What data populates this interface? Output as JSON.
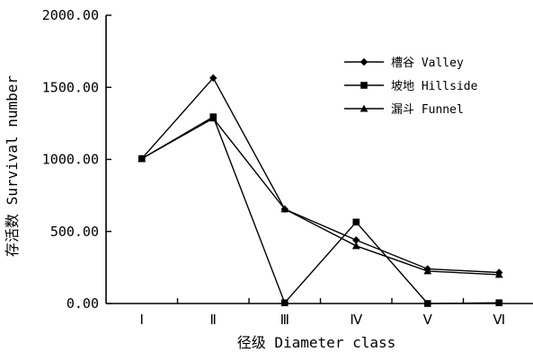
{
  "chart_data": {
    "type": "line",
    "categories": [
      "Ⅰ",
      "Ⅱ",
      "Ⅲ",
      "Ⅳ",
      "Ⅴ",
      "Ⅵ"
    ],
    "xlabel": "径级  Diameter class",
    "ylabel": "存活数 Survival number",
    "ylim": [
      0,
      2000
    ],
    "y_ticks": [
      "0.00",
      "500.00",
      "1000.00",
      "1500.00",
      "2000.00"
    ],
    "legend_position": "top-right",
    "grid": false,
    "series": [
      {
        "name": "槽谷 Valley",
        "marker": "diamond",
        "values": [
          1005,
          1565,
          655,
          440,
          240,
          215
        ]
      },
      {
        "name": "坡地 Hillside",
        "marker": "square",
        "values": [
          1005,
          1295,
          5,
          565,
          0,
          5
        ]
      },
      {
        "name": "漏斗 Funnel",
        "marker": "triangle",
        "values": [
          1005,
          1285,
          655,
          400,
          225,
          200
        ]
      }
    ]
  }
}
